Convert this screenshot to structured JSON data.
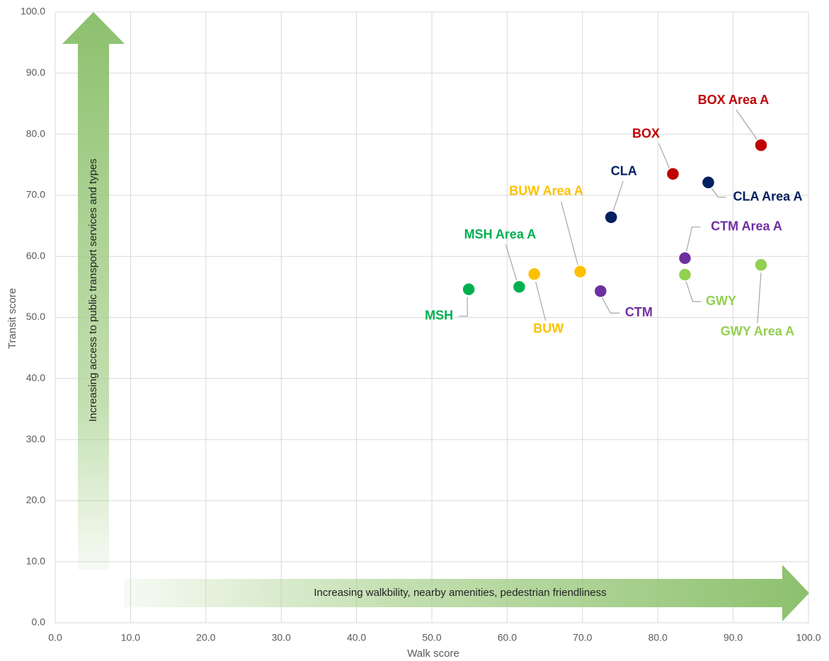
{
  "chart_data": {
    "type": "scatter",
    "x_label": "Walk score",
    "y_label": "Transit score",
    "annotations": [
      "Increasing access to public transport services and types",
      "Increasing walkbility, nearby amenities, pedestrian friendliness"
    ],
    "xlim": [
      0,
      100
    ],
    "ylim": [
      0,
      100
    ],
    "xticks": [
      {
        "value": 0,
        "label": "0.0"
      },
      {
        "value": 10,
        "label": "10.0"
      },
      {
        "value": 20,
        "label": "20.0"
      },
      {
        "value": 30,
        "label": "30.0"
      },
      {
        "value": 40,
        "label": "40.0"
      },
      {
        "value": 50,
        "label": "50.0"
      },
      {
        "value": 60,
        "label": "60.0"
      },
      {
        "value": 70,
        "label": "70.0"
      },
      {
        "value": 80,
        "label": "80.0"
      },
      {
        "value": 90,
        "label": "90.0"
      },
      {
        "value": 100,
        "label": "100.0"
      }
    ],
    "yticks": [
      {
        "value": 0,
        "label": "0.0"
      },
      {
        "value": 10,
        "label": "10.0"
      },
      {
        "value": 20,
        "label": "20.0"
      },
      {
        "value": 30,
        "label": "30.0"
      },
      {
        "value": 40,
        "label": "40.0"
      },
      {
        "value": 50,
        "label": "50.0"
      },
      {
        "value": 60,
        "label": "60.0"
      },
      {
        "value": 70,
        "label": "70.0"
      },
      {
        "value": 80,
        "label": "80.0"
      },
      {
        "value": 90,
        "label": "90.0"
      },
      {
        "value": 100,
        "label": "100.0"
      }
    ],
    "grid": true,
    "series": [
      {
        "name": "MSH",
        "color": "#00b050",
        "x": [
          54.9
        ],
        "values": [
          54.6
        ]
      },
      {
        "name": "MSH Area A",
        "color": "#00b050",
        "x": [
          61.6
        ],
        "values": [
          55.0
        ]
      },
      {
        "name": "BUW",
        "color": "#ffc000",
        "x": [
          63.6
        ],
        "values": [
          57.1
        ]
      },
      {
        "name": "BUW Area A",
        "color": "#ffc000",
        "x": [
          69.7
        ],
        "values": [
          57.5
        ]
      },
      {
        "name": "CTM",
        "color": "#7030a0",
        "x": [
          72.4
        ],
        "values": [
          54.3
        ]
      },
      {
        "name": "CLA",
        "color": "#002060",
        "x": [
          73.8
        ],
        "values": [
          66.4
        ]
      },
      {
        "name": "BOX",
        "color": "#c00000",
        "x": [
          82.0
        ],
        "values": [
          73.5
        ]
      },
      {
        "name": "CLA Area A",
        "color": "#002060",
        "x": [
          86.7
        ],
        "values": [
          72.1
        ]
      },
      {
        "name": "CTM Area A",
        "color": "#7030a0",
        "x": [
          83.6
        ],
        "values": [
          59.7
        ]
      },
      {
        "name": "GWY",
        "color": "#92d050",
        "x": [
          83.6
        ],
        "values": [
          57.0
        ]
      },
      {
        "name": "GWY Area A",
        "color": "#92d050",
        "x": [
          93.7
        ],
        "values": [
          58.6
        ]
      },
      {
        "name": "BOX Area A",
        "color": "#c00000",
        "x": [
          93.7
        ],
        "values": [
          78.2
        ]
      }
    ]
  }
}
